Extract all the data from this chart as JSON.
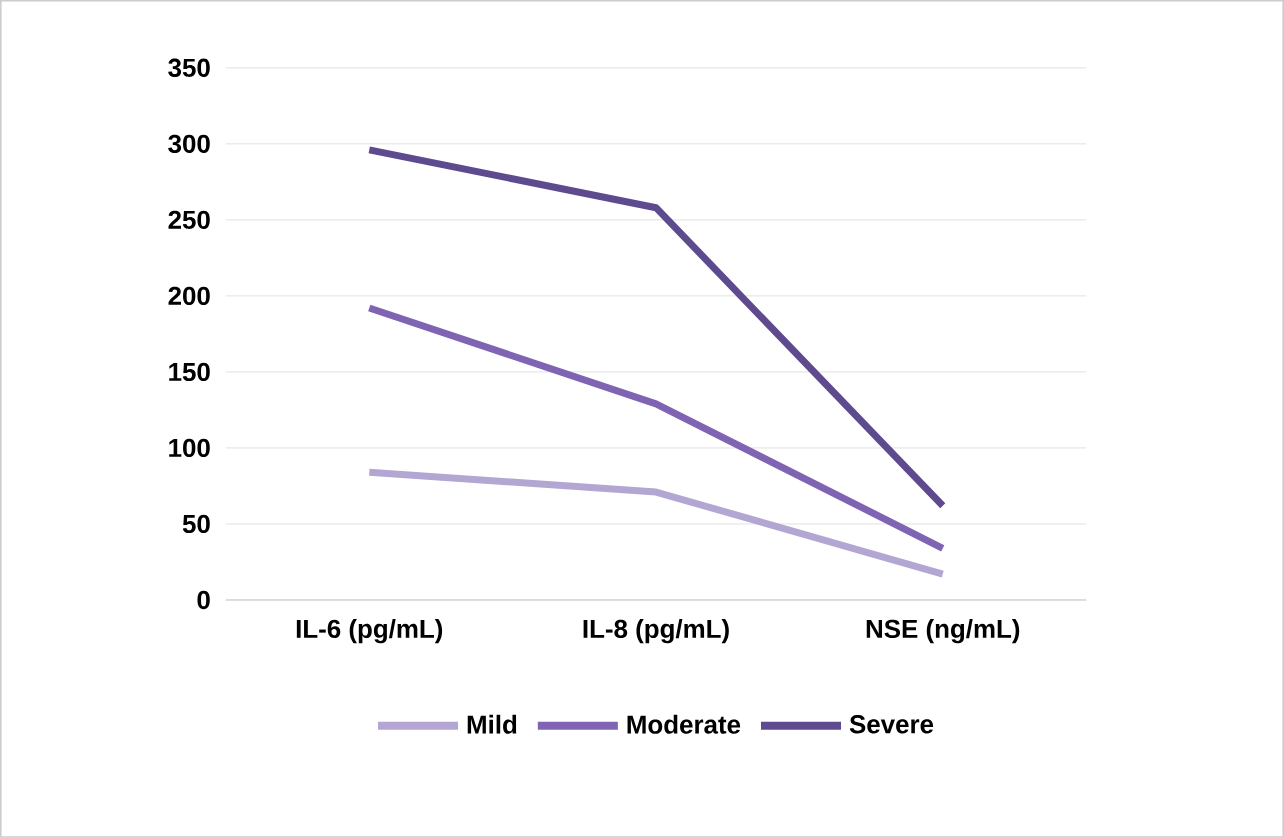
{
  "chart_data": {
    "type": "line",
    "categories": [
      "IL-6 (pg/mL)",
      "IL-8 (pg/mL)",
      "NSE (ng/mL)"
    ],
    "series": [
      {
        "name": "Mild",
        "color": "#b3a6d3",
        "values": [
          84,
          71,
          17
        ]
      },
      {
        "name": "Moderate",
        "color": "#8064b4",
        "values": [
          192,
          129,
          34
        ]
      },
      {
        "name": "Severe",
        "color": "#5e4a8e",
        "values": [
          296,
          258,
          62
        ]
      }
    ],
    "ylim": [
      0,
      350
    ],
    "yticks": [
      0,
      50,
      100,
      150,
      200,
      250,
      300,
      350
    ],
    "grid": "y",
    "legend": "bottom",
    "marker": "none",
    "line_style": "solid"
  }
}
